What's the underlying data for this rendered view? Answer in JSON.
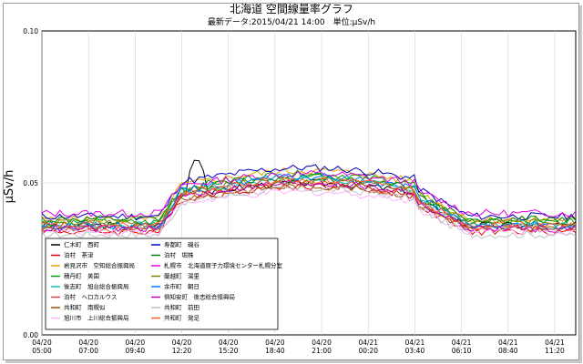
{
  "chart_data": {
    "type": "line",
    "title": "北海道 空間線量率グラフ",
    "subtitle": "最新データ:2015/04/21 14:00　単位:μSv/h",
    "ylabel": "μSv/h",
    "xlabel": "",
    "ylim": [
      0.0,
      0.1
    ],
    "yticks": [
      "0.00",
      "0.05",
      "0.10"
    ],
    "x_ticks": [
      {
        "date": "04/20",
        "time": "05:00"
      },
      {
        "date": "04/20",
        "time": "07:00"
      },
      {
        "date": "04/20",
        "time": "09:40"
      },
      {
        "date": "04/20",
        "time": "12:20"
      },
      {
        "date": "04/20",
        "time": "15:20"
      },
      {
        "date": "04/20",
        "time": "18:40"
      },
      {
        "date": "04/20",
        "time": "21:00"
      },
      {
        "date": "04/21",
        "time": "00:20"
      },
      {
        "date": "04/21",
        "time": "03:40"
      },
      {
        "date": "04/21",
        "time": "06:10"
      },
      {
        "date": "04/21",
        "time": "08:40"
      },
      {
        "date": "04/21",
        "time": "11:20"
      }
    ],
    "grid": true,
    "legend_position": "bottom-left",
    "series": [
      {
        "name": "仁木町　西町",
        "color": "#000000",
        "base": 0.036,
        "peak": 0.05,
        "spike": 0.059
      },
      {
        "name": "泊村　茶津",
        "color": "#e00000",
        "base": 0.034,
        "peak": 0.049
      },
      {
        "name": "岩見沢市　空知総合振興局",
        "color": "#e0a000",
        "base": 0.038,
        "peak": 0.054
      },
      {
        "name": "積丹町　美国",
        "color": "#00a000",
        "base": 0.037,
        "peak": 0.053
      },
      {
        "name": "後志町　旭台総合振興局",
        "color": "#00c0c0",
        "base": 0.036,
        "peak": 0.051
      },
      {
        "name": "泊村　ヘロカルウス",
        "color": "#e04040",
        "base": 0.035,
        "peak": 0.05
      },
      {
        "name": "共和町　南幌似",
        "color": "#a05000",
        "base": 0.035,
        "peak": 0.049
      },
      {
        "name": "旭川市　上川総合振興局",
        "color": "#ffb0ff",
        "base": 0.034,
        "peak": 0.047
      },
      {
        "name": "寿都町　磯谷",
        "color": "#0000c0",
        "base": 0.039,
        "peak": 0.055
      },
      {
        "name": "泊村　堀株",
        "color": "#008000",
        "base": 0.038,
        "peak": 0.052
      },
      {
        "name": "札幌市　北海道原子力環境センター札幌分室",
        "color": "#e000e0",
        "base": 0.04,
        "peak": 0.053
      },
      {
        "name": "蘭越町　湯里",
        "color": "#808000",
        "base": 0.037,
        "peak": 0.051
      },
      {
        "name": "余市町　朝日",
        "color": "#0080ff",
        "base": 0.036,
        "peak": 0.052
      },
      {
        "name": "倶知安町　後志総合振興局",
        "color": "#c000c0",
        "base": 0.035,
        "peak": 0.05
      },
      {
        "name": "共和町　前田",
        "color": "#c0c0c0",
        "base": 0.033,
        "peak": 0.048
      },
      {
        "name": "共和町　発足",
        "color": "#ff6030",
        "base": 0.036,
        "peak": 0.051
      }
    ]
  }
}
